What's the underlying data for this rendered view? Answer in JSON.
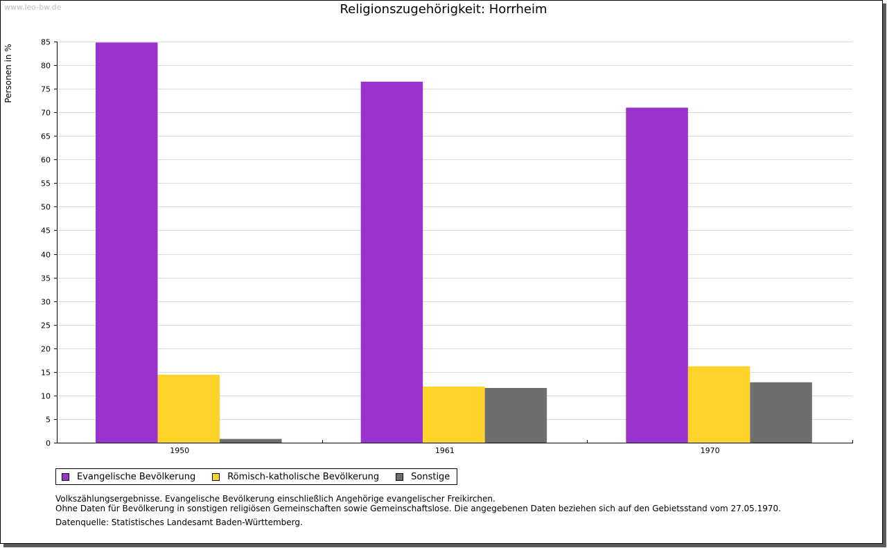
{
  "watermark": "www.leo-bw.de",
  "chart_data": {
    "type": "bar",
    "title": "Religionszugehörigkeit: Horrheim",
    "xlabel": "",
    "ylabel": "Personen in %",
    "ylim": [
      0,
      85
    ],
    "yticks": [
      0,
      5,
      10,
      15,
      20,
      25,
      30,
      35,
      40,
      45,
      50,
      55,
      60,
      65,
      70,
      75,
      80,
      85
    ],
    "grid": true,
    "categories": [
      "1950",
      "1961",
      "1970"
    ],
    "series": [
      {
        "name": "Evangelische Bevölkerung",
        "color": "#9933cc",
        "values": [
          84.8,
          76.5,
          71.0
        ]
      },
      {
        "name": "Römisch-katholische Bevölkerung",
        "color": "#ffd42a",
        "values": [
          14.4,
          11.9,
          16.2
        ]
      },
      {
        "name": "Sonstige",
        "color": "#6e6e6e",
        "values": [
          0.8,
          11.6,
          12.8
        ]
      }
    ],
    "legend_position": "bottom-left"
  },
  "notes": {
    "line1": "Volkszählungsergebnisse. Evangelische Bevölkerung einschließlich Angehörige evangelischer Freikirchen.",
    "line2": "Ohne Daten für Bevölkerung in sonstigen religiösen Gemeinschaften sowie Gemeinschaftslose. Die angegebenen Daten beziehen sich auf den Gebietsstand vom 27.05.1970.",
    "source": "Datenquelle: Statistisches Landesamt Baden-Württemberg."
  }
}
